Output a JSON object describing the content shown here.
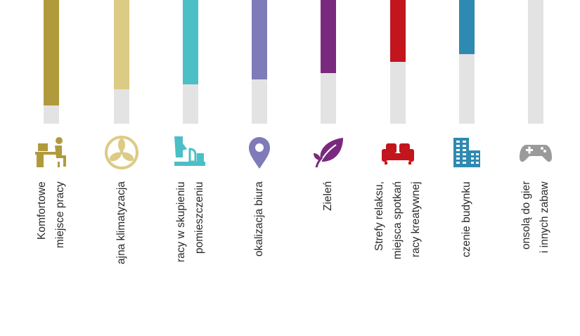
{
  "chart_data": {
    "type": "bar",
    "orientation": "vertical",
    "note_scale": "visible fill fraction of each bar track (top of chart cropped)",
    "categories": [
      {
        "lines": [
          "Komfortowe",
          "miejsce pracy"
        ],
        "icon": "desk-worker-icon",
        "color": "#b09a3c",
        "value": 0.85
      },
      {
        "lines": [
          "ajna klimatyzacja"
        ],
        "icon": "fan-icon",
        "color": "#dccb85",
        "value": 0.72
      },
      {
        "lines": [
          "racy w skupieniu",
          "pomieszczeniu"
        ],
        "icon": "quiet-room-icon",
        "color": "#4bbfc6",
        "value": 0.68
      },
      {
        "lines": [
          "okalizacja biura"
        ],
        "icon": "map-pin-icon",
        "color": "#7f7ab8",
        "value": 0.64
      },
      {
        "lines": [
          "Zieleń"
        ],
        "icon": "leaf-icon",
        "color": "#7a2a7e",
        "value": 0.59
      },
      {
        "lines": [
          "Strefy relaksu,",
          "miejsca spotkań",
          "racy kreatywnej"
        ],
        "icon": "sofa-icon",
        "color": "#c2151d",
        "value": 0.5
      },
      {
        "lines": [
          "czenie budynku"
        ],
        "icon": "building-icon",
        "color": "#2e8ab0",
        "value": 0.44
      },
      {
        "lines": [
          "onsolą do gier",
          "i innych zabaw"
        ],
        "icon": "gamepad-icon",
        "color": "#9a9a9a",
        "value": 0
      }
    ],
    "track_color": "#e3e3e3",
    "grid": false
  }
}
